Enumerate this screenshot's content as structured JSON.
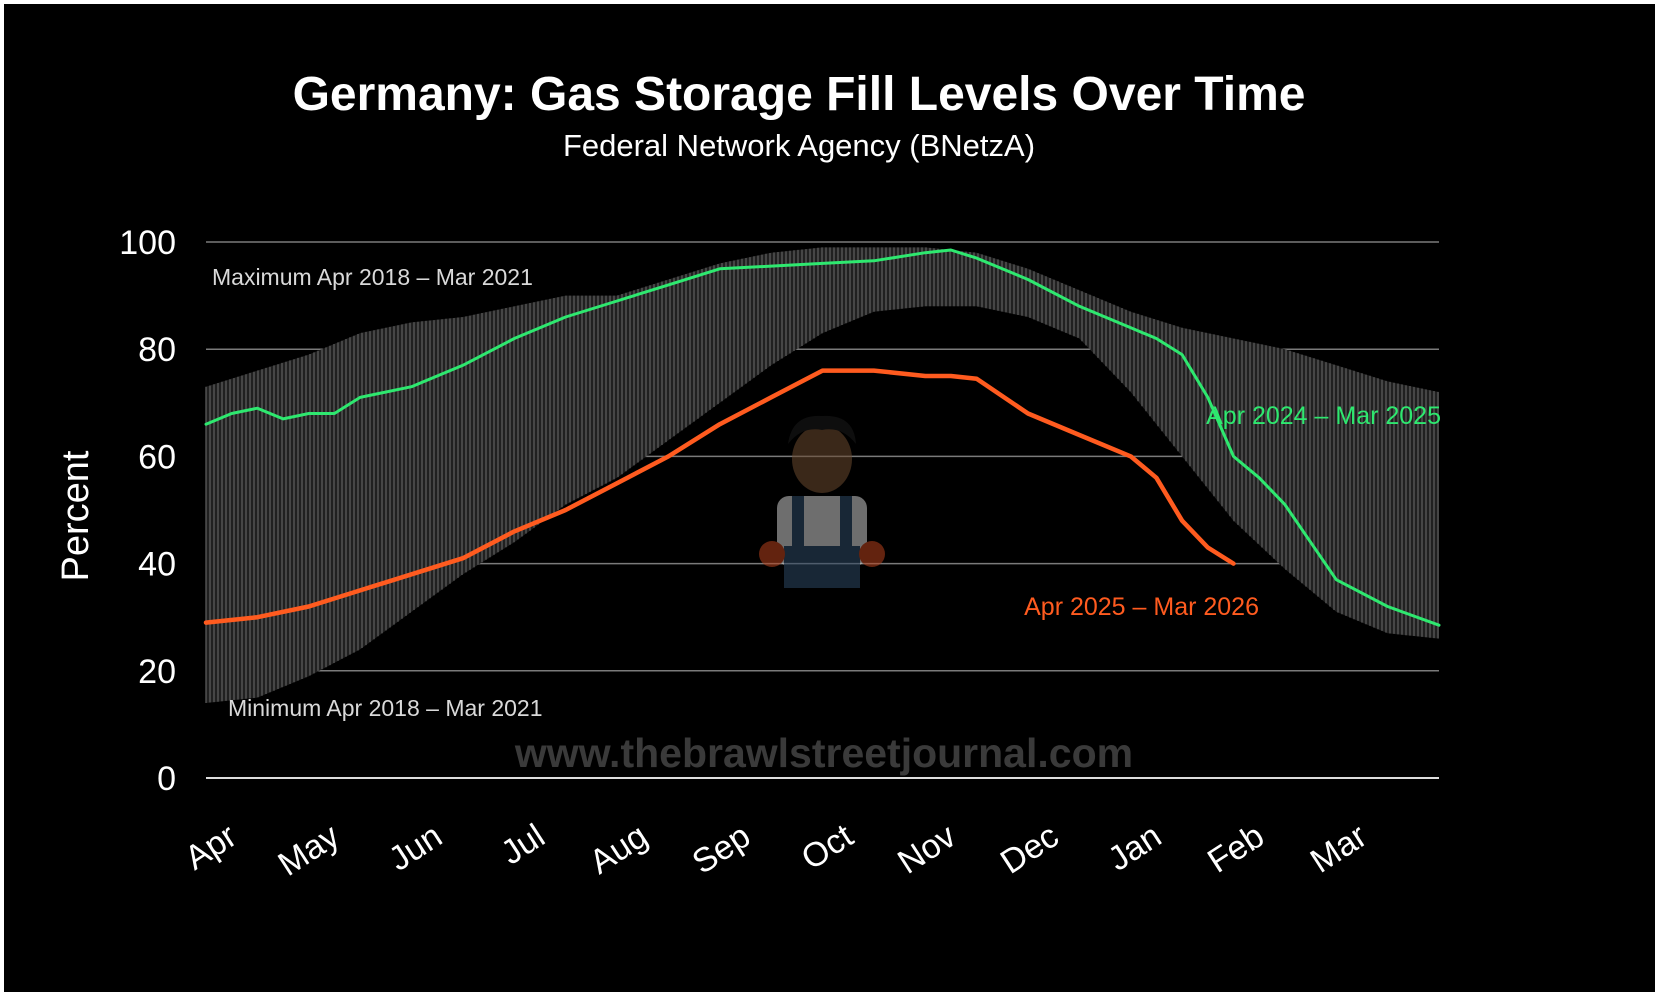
{
  "chart_data": {
    "type": "line",
    "title": "Germany: Gas Storage Fill Levels Over Time",
    "subtitle": "Federal Network Agency (BNetzA)",
    "ylabel": "Percent",
    "xlabel": "",
    "ylim": [
      0,
      100
    ],
    "yticks": [
      0,
      20,
      40,
      60,
      80,
      100
    ],
    "x_ticks": [
      "Apr",
      "May",
      "Jun",
      "Jul",
      "Aug",
      "Sep",
      "Oct",
      "Nov",
      "Dec",
      "Jan",
      "Feb",
      "Mar"
    ],
    "x_domain": [
      0,
      12
    ],
    "grid": true,
    "band": {
      "label_max": "Maximum Apr 2018 – Mar 2021",
      "label_min": "Minimum Apr 2018 – Mar 2021",
      "color": "#5a5a5a",
      "month": [
        0,
        0.5,
        1,
        1.5,
        2,
        2.5,
        3,
        3.5,
        4,
        4.5,
        5,
        5.5,
        6,
        6.5,
        7,
        7.5,
        8,
        8.5,
        9,
        9.5,
        10,
        10.5,
        11,
        11.5,
        12
      ],
      "max": [
        73,
        76,
        79,
        83,
        85,
        86,
        88,
        90,
        90,
        93,
        96,
        98,
        99,
        99,
        99,
        98,
        95,
        91,
        87,
        84,
        82,
        80,
        77,
        74,
        72
      ],
      "min": [
        14,
        15,
        19,
        24,
        31,
        38,
        44,
        51,
        56,
        63,
        70,
        77,
        83,
        87,
        88,
        88,
        86,
        82,
        72,
        60,
        48,
        39,
        31,
        27,
        26
      ]
    },
    "series": [
      {
        "name": "Apr 2024 – Mar 2025",
        "color": "#2ee86f",
        "month": [
          0,
          0.25,
          0.5,
          0.75,
          1,
          1.25,
          1.5,
          2,
          2.5,
          3,
          3.5,
          4,
          4.5,
          5,
          5.5,
          6,
          6.5,
          7,
          7.25,
          7.5,
          8,
          8.5,
          9,
          9.25,
          9.5,
          9.75,
          10,
          10.25,
          10.5,
          10.75,
          11,
          11.5,
          12
        ],
        "values": [
          66,
          68,
          69,
          67,
          68,
          68,
          71,
          73,
          77,
          82,
          86,
          89,
          92,
          95,
          95.5,
          96,
          96.5,
          98,
          98.5,
          97,
          93,
          88,
          84,
          82,
          79,
          71,
          60,
          56,
          51,
          44,
          37,
          32,
          28.5
        ]
      },
      {
        "name": "Apr 2025 – Mar 2026",
        "color": "#ff5b1f",
        "month": [
          0,
          0.5,
          1,
          1.5,
          2,
          2.5,
          3,
          3.5,
          4,
          4.5,
          5,
          5.5,
          6,
          6.5,
          7,
          7.25,
          7.5,
          8,
          8.5,
          9,
          9.25,
          9.5,
          9.75,
          10
        ],
        "values": [
          29,
          30,
          32,
          35,
          38,
          41,
          46,
          50,
          55,
          60,
          66,
          71,
          76,
          76,
          75,
          75,
          74.5,
          68,
          64,
          60,
          56,
          48,
          43,
          40
        ]
      }
    ]
  },
  "watermark": "www.thebrawlstreetjournal.com",
  "mascot": "cartoon-mechanic-logo"
}
